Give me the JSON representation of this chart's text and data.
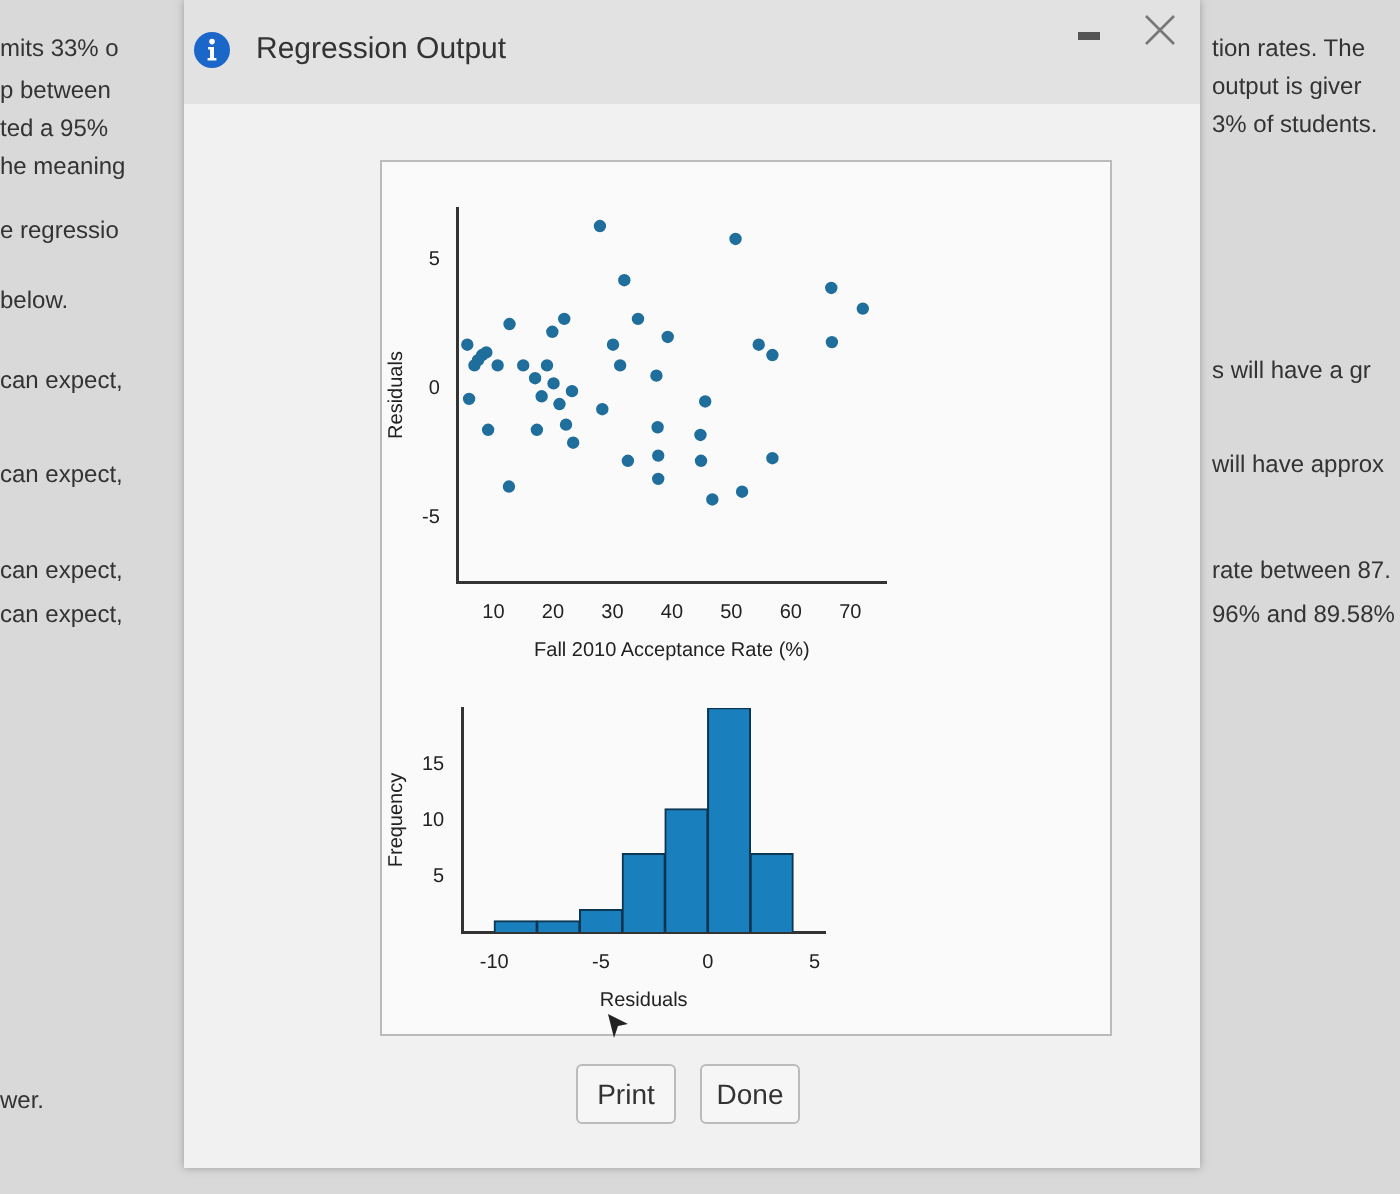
{
  "chart_data": [
    {
      "type": "scatter",
      "xlabel": "Fall 2010 Acceptance Rate (%)",
      "ylabel": "Residuals",
      "xlim": [
        4,
        76
      ],
      "ylim": [
        -7.5,
        7
      ],
      "xticks": [
        10,
        20,
        30,
        40,
        50,
        60,
        70
      ],
      "yticks": [
        -5,
        0,
        5
      ],
      "grid": false,
      "marker": "circle",
      "series": [
        {
          "color": "#1f6e9c",
          "x": [
            5.6,
            5.9,
            6.8,
            7.4,
            8.1,
            8.8,
            9.1,
            10.7,
            12.6,
            12.7,
            15,
            17,
            17.3,
            18.1,
            19,
            19.9,
            20.1,
            21.1,
            21.9,
            22.2,
            23.2,
            23.4,
            27.9,
            28.3,
            30.1,
            31.3,
            32,
            32.6,
            34.3,
            37.4,
            37.6,
            37.7,
            37.7,
            39.3,
            44.8,
            44.9,
            45.6,
            46.8,
            50.7,
            51.8,
            54.6,
            56.9,
            56.9,
            66.8,
            66.9,
            72.1
          ],
          "values": [
            1.7,
            -0.4,
            0.9,
            1.1,
            1.3,
            1.4,
            -1.6,
            0.9,
            -3.8,
            2.5,
            0.9,
            0.4,
            -1.6,
            -0.3,
            0.9,
            2.2,
            0.2,
            -0.6,
            2.7,
            -1.4,
            -0.1,
            -2.1,
            6.3,
            -0.8,
            1.7,
            0.9,
            4.2,
            -2.8,
            2.7,
            0.5,
            -1.5,
            -2.6,
            -3.5,
            2.0,
            -1.8,
            -2.8,
            -0.5,
            -4.3,
            5.8,
            -4.0,
            1.7,
            1.3,
            -2.7,
            3.9,
            1.8,
            3.1
          ]
        }
      ]
    },
    {
      "type": "histogram",
      "xlabel": "Residuals",
      "ylabel": "Frequency",
      "bins": [
        -10,
        -8,
        -6,
        -4,
        -2,
        0,
        2,
        4
      ],
      "values": [
        1,
        1,
        2,
        7,
        11,
        20,
        7
      ],
      "color": "#1a80bd",
      "xlim": [
        -11.5,
        5.5
      ],
      "ylim": [
        0,
        20
      ],
      "xticks": [
        -10,
        -5,
        0,
        5
      ],
      "yticks": [
        5,
        10,
        15
      ],
      "grid": false
    },
    {
      "type": "other",
      "title": "Regression Output",
      "annotations": [
        "Print",
        "Done",
        "mits 33% o",
        "p between",
        "ted a 95%",
        "he meaning",
        "e regressio",
        "below.",
        "can expect,",
        "can expect,",
        "can expect,",
        "can expect,",
        "wer.",
        "tion rates. The",
        "output is giver",
        "3% of students.",
        "s will have a gr",
        "will have approx",
        "rate between 87.",
        "96% and 89.58%"
      ]
    }
  ]
}
